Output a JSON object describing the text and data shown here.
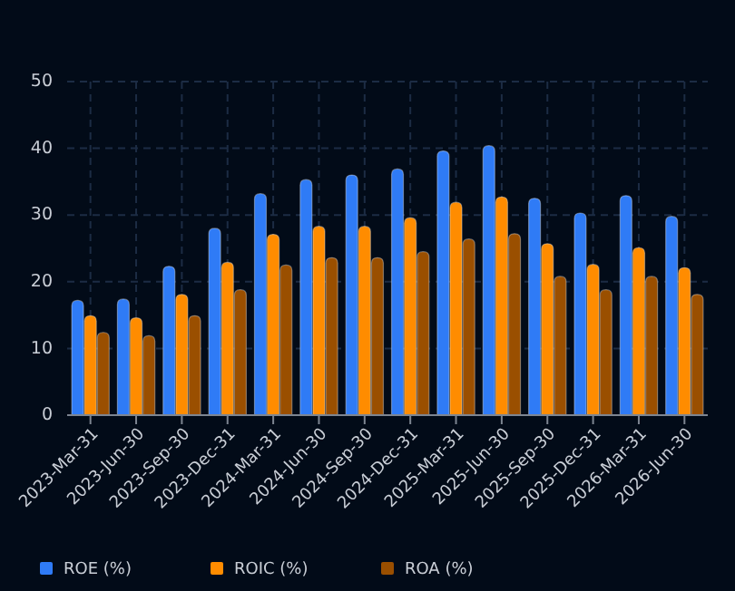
{
  "chart_data": {
    "type": "bar",
    "categories": [
      "2023-Mar-31",
      "2023-Jun-30",
      "2023-Sep-30",
      "2023-Dec-31",
      "2024-Mar-31",
      "2024-Jun-30",
      "2024-Sep-30",
      "2024-Dec-31",
      "2025-Mar-31",
      "2025-Jun-30",
      "2025-Sep-30",
      "2025-Dec-31",
      "2026-Mar-31",
      "2026-Jun-30"
    ],
    "series": [
      {
        "name": "ROE (%)",
        "color": "#2f7bf6",
        "values": [
          17.2,
          17.4,
          22.3,
          28,
          33.2,
          35.3,
          36,
          36.9,
          39.6,
          40.4,
          32.5,
          30.3,
          32.9,
          29.8
        ]
      },
      {
        "name": "ROIC (%)",
        "color": "#ff8c00",
        "values": [
          14.9,
          14.6,
          18.1,
          22.9,
          27.1,
          28.3,
          28.3,
          29.6,
          31.9,
          32.7,
          25.7,
          22.6,
          25.1,
          22.1
        ]
      },
      {
        "name": "ROA (%)",
        "color": "#9a4f00",
        "values": [
          12.4,
          11.9,
          14.9,
          18.8,
          22.5,
          23.6,
          23.6,
          24.5,
          26.4,
          27.2,
          20.8,
          18.8,
          20.8,
          18.1
        ]
      }
    ],
    "ylim": [
      0,
      50
    ],
    "yticks": [
      0,
      10,
      20,
      30,
      40,
      50
    ],
    "grid": true,
    "legend": "bottom"
  }
}
